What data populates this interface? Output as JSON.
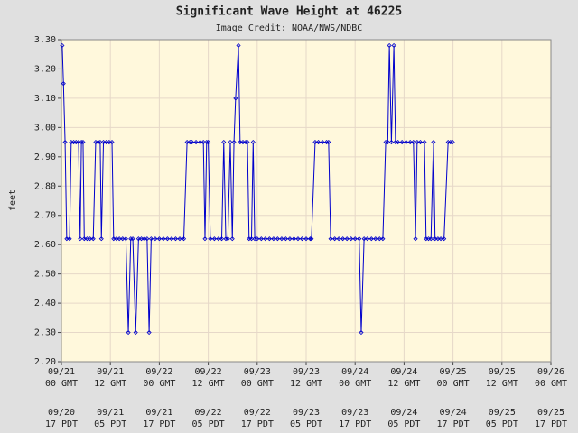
{
  "chart_data": {
    "type": "line",
    "title": "Significant Wave Height at 46225",
    "subtitle": "Image Credit: NOAA/NWS/NDBC",
    "y_label": "feet",
    "xlim": [
      0,
      120
    ],
    "xticks": [
      0,
      12,
      24,
      36,
      48,
      60,
      72,
      84,
      96,
      108,
      120
    ],
    "xtick_labels": [
      {
        "gmt": [
          "09/21",
          "00 GMT"
        ],
        "pdt": [
          "09/20",
          "17 PDT"
        ]
      },
      {
        "gmt": [
          "09/21",
          "12 GMT"
        ],
        "pdt": [
          "09/21",
          "05 PDT"
        ]
      },
      {
        "gmt": [
          "09/22",
          "00 GMT"
        ],
        "pdt": [
          "09/21",
          "17 PDT"
        ]
      },
      {
        "gmt": [
          "09/22",
          "12 GMT"
        ],
        "pdt": [
          "09/22",
          "05 PDT"
        ]
      },
      {
        "gmt": [
          "09/23",
          "00 GMT"
        ],
        "pdt": [
          "09/22",
          "17 PDT"
        ]
      },
      {
        "gmt": [
          "09/23",
          "12 GMT"
        ],
        "pdt": [
          "09/23",
          "05 PDT"
        ]
      },
      {
        "gmt": [
          "09/24",
          "00 GMT"
        ],
        "pdt": [
          "09/23",
          "17 PDT"
        ]
      },
      {
        "gmt": [
          "09/24",
          "12 GMT"
        ],
        "pdt": [
          "09/24",
          "05 PDT"
        ]
      },
      {
        "gmt": [
          "09/25",
          "00 GMT"
        ],
        "pdt": [
          "09/24",
          "17 PDT"
        ]
      },
      {
        "gmt": [
          "09/25",
          "12 GMT"
        ],
        "pdt": [
          "09/25",
          "05 PDT"
        ]
      },
      {
        "gmt": [
          "09/26",
          "00 GMT"
        ],
        "pdt": [
          "09/25",
          "17 PDT"
        ]
      }
    ],
    "ylim": [
      2.2,
      3.3
    ],
    "yticks": [
      {
        "value": 2.2,
        "label": "2.20"
      },
      {
        "value": 2.3,
        "label": "2.30"
      },
      {
        "value": 2.4,
        "label": "2.40"
      },
      {
        "value": 2.5,
        "label": "2.50"
      },
      {
        "value": 2.6,
        "label": "2.60"
      },
      {
        "value": 2.7,
        "label": "2.70"
      },
      {
        "value": 2.8,
        "label": "2.80"
      },
      {
        "value": 2.9,
        "label": "2.90"
      },
      {
        "value": 3.0,
        "label": "3.00"
      },
      {
        "value": 3.1,
        "label": "3.10"
      },
      {
        "value": 3.2,
        "label": "3.20"
      },
      {
        "value": 3.3,
        "label": "3.30"
      }
    ],
    "grid": true,
    "series": [
      {
        "color": "#0000cc",
        "x": [
          0.2,
          0.5,
          0.9,
          1.3,
          2.0,
          2.4,
          3.0,
          3.6,
          4.2,
          4.6,
          4.9,
          5.3,
          5.6,
          6.3,
          7.0,
          7.8,
          8.4,
          9.0,
          9.5,
          9.8,
          10.3,
          11.0,
          11.7,
          12.4,
          12.8,
          13.5,
          14.2,
          15.0,
          15.8,
          16.4,
          17.0,
          17.5,
          18.2,
          18.9,
          19.6,
          20.3,
          21.0,
          21.5,
          22.0,
          23,
          24,
          25,
          26,
          27,
          28,
          29,
          30,
          30.8,
          31.5,
          32,
          33,
          34,
          34.8,
          35.2,
          35.6,
          36.0,
          36.5,
          37.5,
          38.5,
          39.3,
          39.8,
          40.3,
          40.8,
          41.4,
          41.9,
          42.3,
          42.7,
          43.4,
          43.8,
          44.5,
          45.2,
          45.6,
          46.0,
          46.6,
          47.0,
          47.4,
          48,
          49,
          50,
          51,
          52,
          53,
          54,
          55,
          56,
          57,
          58,
          59,
          60,
          61,
          61.3,
          62.2,
          63,
          64,
          65,
          65.5,
          66,
          67,
          68,
          69,
          70,
          71,
          72,
          73,
          73.5,
          74.2,
          75,
          76,
          77,
          78,
          78.8,
          79.5,
          80.0,
          80.4,
          80.9,
          81.5,
          81.9,
          82.5,
          83.5,
          84.5,
          85.5,
          86.3,
          86.8,
          87.2,
          88,
          89,
          89.4,
          90,
          90.6,
          91.2,
          91.6,
          92.3,
          93,
          93.8,
          94.8,
          95.4,
          95.9
        ],
        "values": [
          3.28,
          3.15,
          2.95,
          2.62,
          2.62,
          2.95,
          2.95,
          2.95,
          2.95,
          2.62,
          2.95,
          2.95,
          2.62,
          2.62,
          2.62,
          2.62,
          2.95,
          2.95,
          2.95,
          2.62,
          2.95,
          2.95,
          2.95,
          2.95,
          2.62,
          2.62,
          2.62,
          2.62,
          2.62,
          2.3,
          2.62,
          2.62,
          2.3,
          2.62,
          2.62,
          2.62,
          2.62,
          2.3,
          2.62,
          2.62,
          2.62,
          2.62,
          2.62,
          2.62,
          2.62,
          2.62,
          2.62,
          2.95,
          2.95,
          2.95,
          2.95,
          2.95,
          2.95,
          2.62,
          2.95,
          2.95,
          2.62,
          2.62,
          2.62,
          2.62,
          2.95,
          2.62,
          2.62,
          2.95,
          2.62,
          2.95,
          3.1,
          3.28,
          2.95,
          2.95,
          2.95,
          2.95,
          2.62,
          2.62,
          2.95,
          2.62,
          2.62,
          2.62,
          2.62,
          2.62,
          2.62,
          2.62,
          2.62,
          2.62,
          2.62,
          2.62,
          2.62,
          2.62,
          2.62,
          2.62,
          2.62,
          2.95,
          2.95,
          2.95,
          2.95,
          2.95,
          2.62,
          2.62,
          2.62,
          2.62,
          2.62,
          2.62,
          2.62,
          2.62,
          2.3,
          2.62,
          2.62,
          2.62,
          2.62,
          2.62,
          2.62,
          2.95,
          2.95,
          3.28,
          2.95,
          3.28,
          2.95,
          2.95,
          2.95,
          2.95,
          2.95,
          2.95,
          2.62,
          2.95,
          2.95,
          2.95,
          2.62,
          2.62,
          2.62,
          2.95,
          2.62,
          2.62,
          2.62,
          2.62,
          2.95,
          2.95,
          2.95
        ]
      }
    ]
  }
}
